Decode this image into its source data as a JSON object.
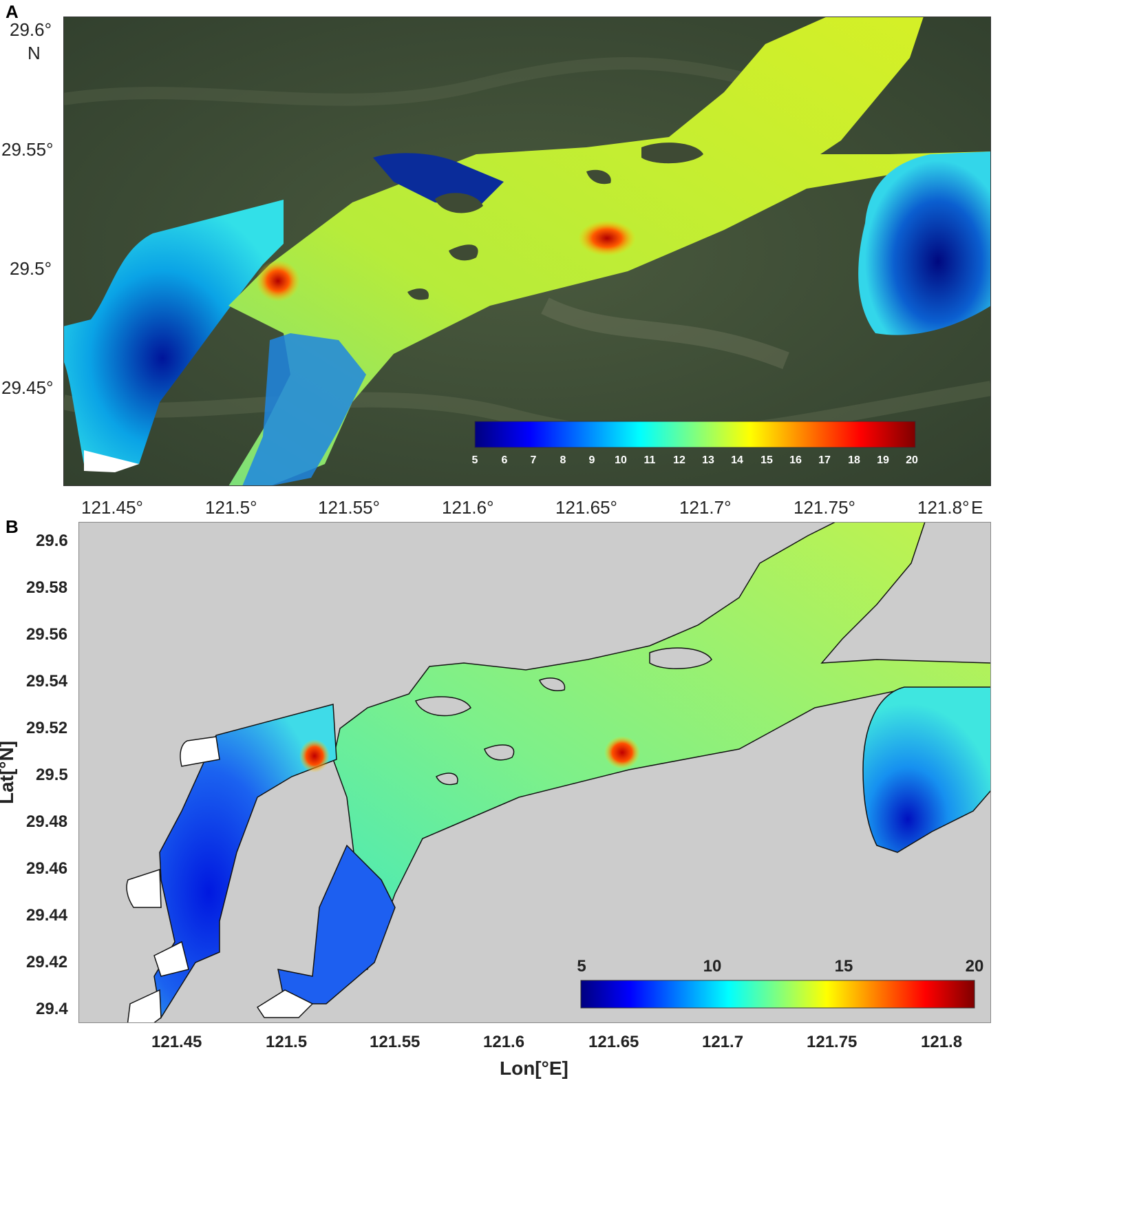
{
  "panels": [
    {
      "label": "A",
      "x_ticks": [
        "121.45°",
        "121.5°",
        "121.55°",
        "121.6°",
        "121.65°",
        "121.7°",
        "121.75°",
        "121.8°"
      ],
      "x_suffix": "E",
      "y_ticks": [
        "29.6°",
        "29.55°",
        "29.5°",
        "29.45°"
      ],
      "y_suffix": "N",
      "colorbar_ticks": [
        "5",
        "6",
        "7",
        "8",
        "9",
        "10",
        "11",
        "12",
        "13",
        "14",
        "15",
        "16",
        "17",
        "18",
        "19",
        "20"
      ],
      "colorbar_range": [
        5,
        20
      ]
    },
    {
      "label": "B",
      "x_ticks": [
        "121.45",
        "121.5",
        "121.55",
        "121.6",
        "121.65",
        "121.7",
        "121.75",
        "121.8"
      ],
      "y_ticks": [
        "29.6",
        "29.58",
        "29.56",
        "29.54",
        "29.52",
        "29.5",
        "29.48",
        "29.46",
        "29.44",
        "29.42",
        "29.4"
      ],
      "xlabel": "Lon[°E]",
      "ylabel": "Lat[°N]",
      "colorbar_ticks": [
        "5",
        "10",
        "15",
        "20"
      ],
      "colorbar_range": [
        5,
        20
      ]
    }
  ],
  "colors": {
    "land_satellite": "#3d4a36",
    "land_model": "#cccccc",
    "jet_dark_blue": "#00007f",
    "jet_cyan": "#00ffff",
    "jet_yellow": "#ffff00",
    "jet_dark_red": "#7f0000"
  }
}
